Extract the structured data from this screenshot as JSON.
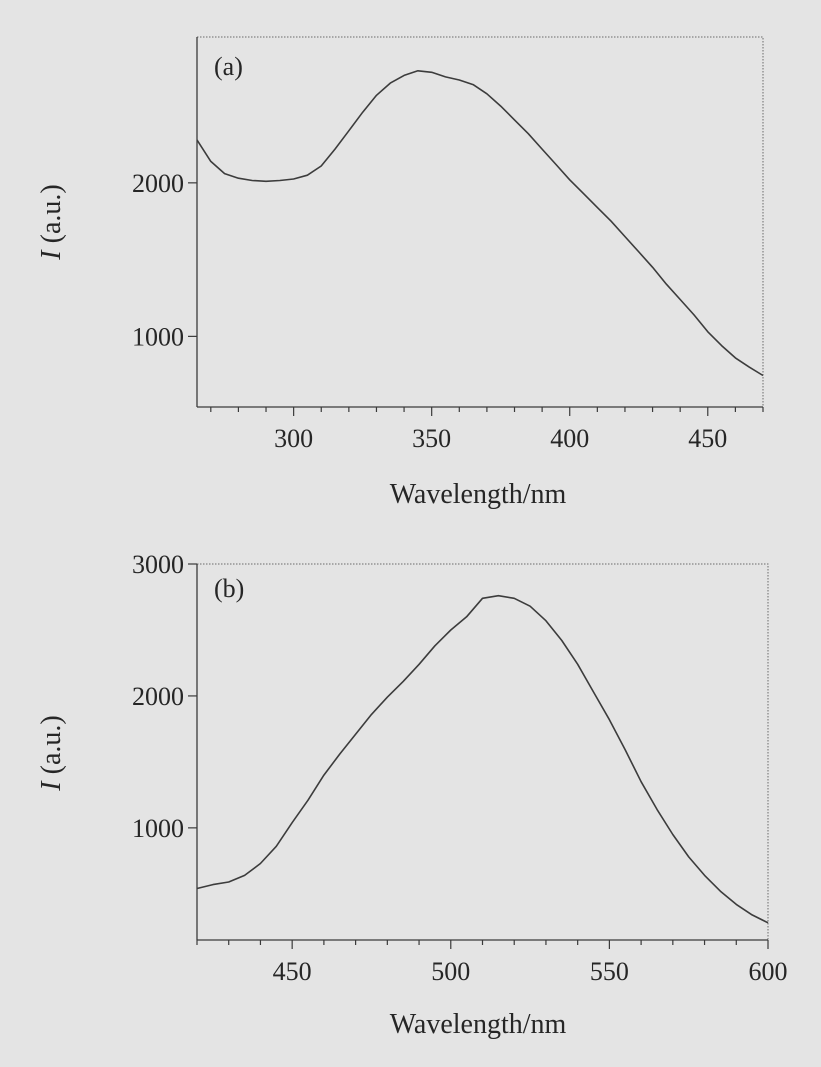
{
  "chart_data": [
    {
      "type": "line",
      "panel_label": "(a)",
      "xlabel": "Wavelength/nm",
      "ylabel_symbol": "I",
      "ylabel_unit": " (a.u.)",
      "xlim": [
        265,
        470
      ],
      "ylim": [
        540,
        2950
      ],
      "xticks": [
        300,
        350,
        400,
        450
      ],
      "yticks": [
        1000,
        2000
      ],
      "xminor_step": 10,
      "grid": false,
      "legend": "none",
      "series": [
        {
          "x": [
            265,
            270,
            275,
            280,
            285,
            290,
            295,
            300,
            305,
            310,
            315,
            320,
            325,
            330,
            335,
            340,
            345,
            350,
            355,
            360,
            365,
            370,
            375,
            380,
            385,
            390,
            395,
            400,
            405,
            410,
            415,
            420,
            425,
            430,
            435,
            440,
            445,
            450,
            455,
            460,
            465,
            470
          ],
          "y": [
            2280,
            2140,
            2060,
            2030,
            2015,
            2010,
            2015,
            2025,
            2050,
            2110,
            2220,
            2340,
            2460,
            2570,
            2650,
            2700,
            2730,
            2720,
            2690,
            2670,
            2640,
            2580,
            2500,
            2410,
            2320,
            2220,
            2120,
            2020,
            1930,
            1840,
            1750,
            1650,
            1550,
            1450,
            1340,
            1240,
            1140,
            1030,
            940,
            860,
            800,
            745
          ]
        }
      ]
    },
    {
      "type": "line",
      "panel_label": "(b)",
      "xlabel": "Wavelength/nm",
      "ylabel_symbol": "I",
      "ylabel_unit": " (a.u.)",
      "xlim": [
        420,
        600
      ],
      "ylim": [
        150,
        3000
      ],
      "xticks": [
        450,
        500,
        550,
        600
      ],
      "yticks": [
        1000,
        2000,
        3000
      ],
      "xminor_step": 10,
      "grid": false,
      "legend": "none",
      "series": [
        {
          "x": [
            420,
            425,
            430,
            435,
            440,
            445,
            450,
            455,
            460,
            465,
            470,
            475,
            480,
            485,
            490,
            495,
            500,
            505,
            510,
            515,
            520,
            525,
            530,
            535,
            540,
            545,
            550,
            555,
            560,
            565,
            570,
            575,
            580,
            585,
            590,
            595,
            600
          ],
          "y": [
            540,
            570,
            590,
            640,
            730,
            860,
            1040,
            1210,
            1400,
            1560,
            1710,
            1860,
            1990,
            2110,
            2240,
            2380,
            2500,
            2600,
            2740,
            2760,
            2740,
            2680,
            2570,
            2420,
            2240,
            2030,
            1820,
            1590,
            1350,
            1140,
            950,
            780,
            640,
            520,
            420,
            340,
            280
          ]
        }
      ]
    }
  ]
}
